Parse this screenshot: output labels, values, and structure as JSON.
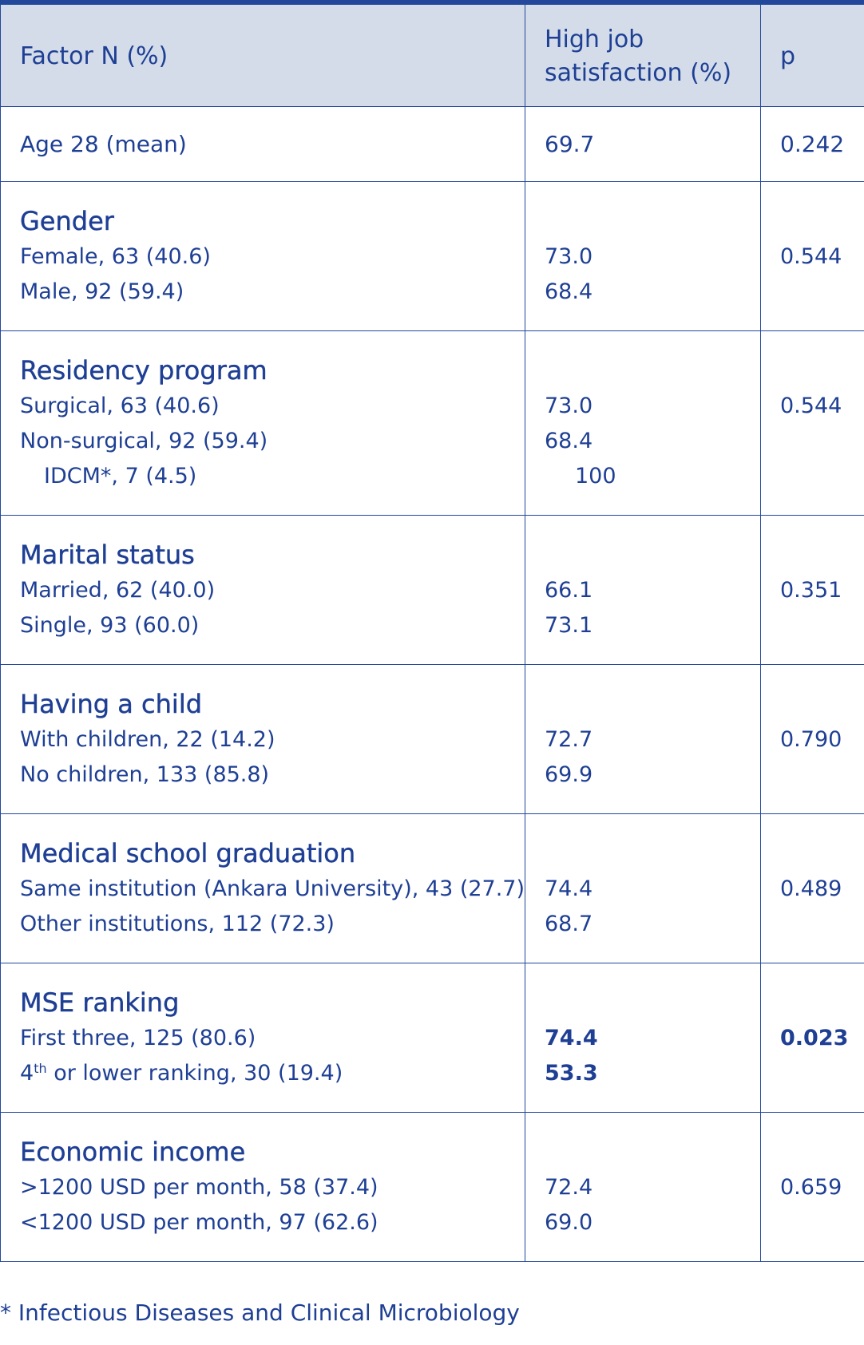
{
  "table": {
    "headers": {
      "factor": "Factor N (%)",
      "satisfaction_line1": "High job",
      "satisfaction_line2": "satisfaction (%)",
      "p": "p"
    },
    "age_row": {
      "label": "Age 28 (mean)",
      "value": "69.7",
      "p": "0.242"
    },
    "groups": [
      {
        "title": "Gender",
        "p": "0.544",
        "rows": [
          {
            "label": "Female, 63 (40.6)",
            "value": "73.0"
          },
          {
            "label": "Male, 92 (59.4)",
            "value": "68.4"
          }
        ]
      },
      {
        "title": "Residency program",
        "p": "0.544",
        "rows": [
          {
            "label": "Surgical, 63 (40.6)",
            "value": "73.0"
          },
          {
            "label": "Non-surgical, 92 (59.4)",
            "value": "68.4"
          },
          {
            "label": "IDCM*, 7 (4.5)",
            "value": "100"
          }
        ]
      },
      {
        "title": "Marital status",
        "p": "0.351",
        "rows": [
          {
            "label": "Married, 62 (40.0)",
            "value": "66.1"
          },
          {
            "label": "Single, 93 (60.0)",
            "value": "73.1"
          }
        ]
      },
      {
        "title": "Having a child",
        "p": "0.790",
        "rows": [
          {
            "label": "With children, 22 (14.2)",
            "value": "72.7"
          },
          {
            "label": "No children, 133 (85.8)",
            "value": "69.9"
          }
        ]
      },
      {
        "title": "Medical school graduation",
        "p": "0.489",
        "rows": [
          {
            "label": "Same institution (Ankara University), 43 (27.7)",
            "value": "74.4"
          },
          {
            "label": "Other institutions, 112 (72.3)",
            "value": "68.7"
          }
        ]
      },
      {
        "title": "MSE ranking",
        "p": "0.023",
        "rows": [
          {
            "label": "First three, 125 (80.6)",
            "value": "74.4"
          },
          {
            "label_prefix": "4",
            "label_sup": "th",
            "label_suffix": " or lower ranking, 30 (19.4)",
            "value": "53.3"
          }
        ]
      },
      {
        "title": "Economic income",
        "p": "0.659",
        "rows": [
          {
            "label": ">1200 USD per month, 58 (37.4)",
            "value": "72.4"
          },
          {
            "label": "<1200 USD per month, 97 (62.6)",
            "value": "69.0"
          }
        ]
      }
    ]
  },
  "footnote": "* Infectious Diseases and Clinical Microbiology",
  "colors": {
    "text": "#1e3f94",
    "border": "#23489b",
    "header_bg": "#d3dce8"
  }
}
